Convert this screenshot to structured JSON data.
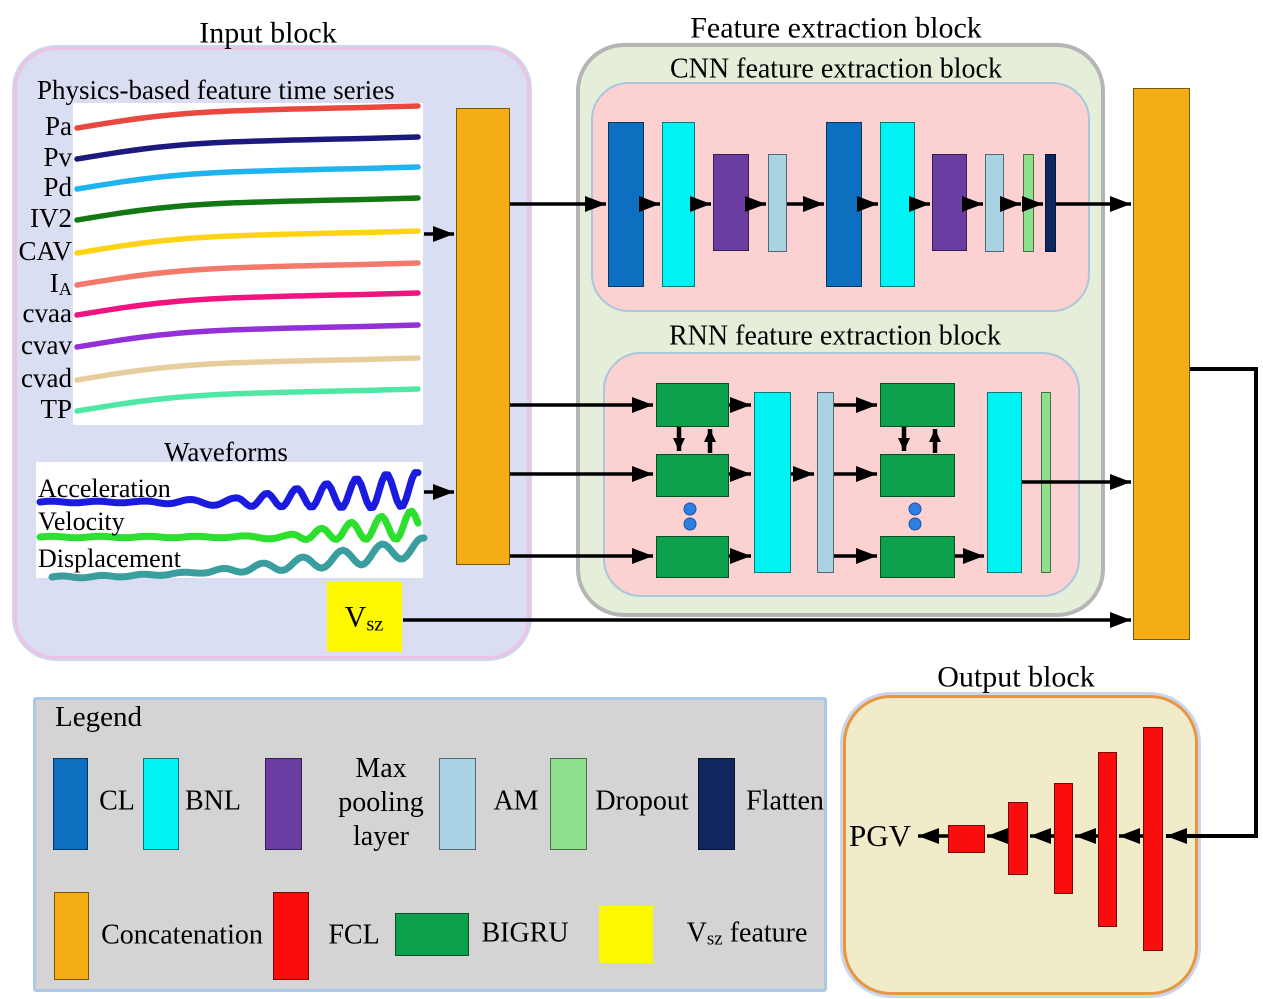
{
  "colors": {
    "cl": "#0d6fc0",
    "bnl": "#00f2f2",
    "maxpool": "#6a3da0",
    "am": "#a9d2e2",
    "dropout": "#8fe08c",
    "flatten": "#10265e",
    "concat": "#f5ad15",
    "fcl": "#f90d0d",
    "bigru": "#0da04c",
    "vsz": "#fdf800",
    "arrow": "#000000",
    "dots": "#2f7fe0",
    "input_bg": "#d9def2",
    "input_border": "#eec2e2",
    "feature_bg": "#e4eed9",
    "feature_border": "#b5b5b5",
    "sub_bg": "#fbd1d1",
    "sub_border": "#a9c6dd",
    "output_bg": "#f0ecca",
    "output_border": "#e8963f",
    "legend_bg": "#d4d4d4",
    "legend_border": "#abc8e8",
    "panel_bg": "#ffffff"
  },
  "input_block": {
    "title": "Input block",
    "timeseries_title": "Physics-based feature time series",
    "series": [
      {
        "label": "Pa",
        "sub": "",
        "color": "#e8483f"
      },
      {
        "label": "Pv",
        "sub": "",
        "color": "#1a1a7e"
      },
      {
        "label": "Pd",
        "sub": "",
        "color": "#1fb4f0"
      },
      {
        "label": "IV2",
        "sub": "",
        "color": "#137813"
      },
      {
        "label": "CAV",
        "sub": "",
        "color": "#fed313"
      },
      {
        "label": "I",
        "sub": "A",
        "color": "#f2796b"
      },
      {
        "label": "cvaa",
        "sub": "",
        "color": "#f01480"
      },
      {
        "label": "cvav",
        "sub": "",
        "color": "#9330d8"
      },
      {
        "label": "cvad",
        "sub": "",
        "color": "#e7cd9e"
      },
      {
        "label": "TP",
        "sub": "",
        "color": "#4ee8a4"
      }
    ],
    "waveforms_title": "Waveforms",
    "waveforms": [
      {
        "label": "Acceleration",
        "color": "#1b1be0"
      },
      {
        "label": "Velocity",
        "color": "#2ee02e"
      },
      {
        "label": "Displacement",
        "color": "#3a9e9e"
      }
    ],
    "vsz": {
      "base": "V",
      "sub": "sz"
    }
  },
  "feature_block": {
    "title": "Feature extraction block",
    "cnn_title": "CNN feature extraction block",
    "rnn_title": "RNN feature extraction block"
  },
  "output_block": {
    "title": "Output block",
    "label": "PGV"
  },
  "legend": {
    "title": "Legend",
    "row1": [
      {
        "label": "CL",
        "swatch": "cl"
      },
      {
        "label": "BNL",
        "swatch": "bnl"
      },
      {
        "label": "Max pooling layer",
        "swatch": "maxpool"
      },
      {
        "label": "AM",
        "swatch": "am"
      },
      {
        "label": "Dropout",
        "swatch": "dropout"
      },
      {
        "label": "Flatten",
        "swatch": "flatten"
      }
    ],
    "row2": [
      {
        "label": "Concatenation",
        "swatch": "concat"
      },
      {
        "label": "FCL",
        "swatch": "fcl"
      },
      {
        "label": "BIGRU",
        "swatch": "bigru"
      },
      {
        "label": "Vsz feature",
        "swatch": "vsz",
        "base": "V",
        "sub": "sz",
        "rest": " feature"
      }
    ]
  }
}
